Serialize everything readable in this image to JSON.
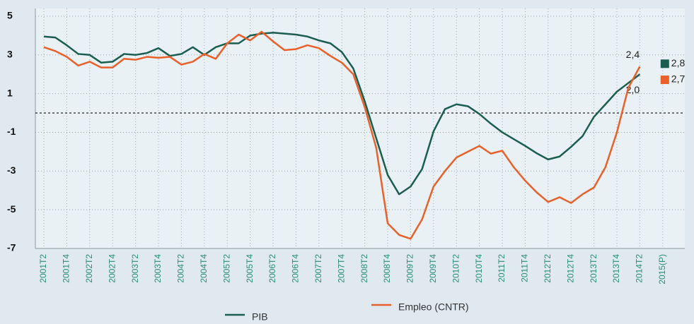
{
  "chart_data": {
    "type": "line",
    "categories": [
      "2001T2",
      null,
      "2001T4",
      null,
      "2002T2",
      null,
      "2002T4",
      null,
      "2003T2",
      null,
      "2003T4",
      null,
      "2004T2",
      null,
      "2004T4",
      null,
      "2005T2",
      null,
      "2005T4",
      null,
      "2006T2",
      null,
      "2006T4",
      null,
      "2007T2",
      null,
      "2007T4",
      null,
      "2008T2",
      null,
      "2008T4",
      null,
      "2009T2",
      null,
      "2009T4",
      null,
      "2010T2",
      null,
      "2010T4",
      null,
      "2011T2",
      null,
      "2011T4",
      null,
      "2012T2",
      null,
      "2012T4",
      null,
      "2013T2",
      null,
      "2013T4",
      null,
      "2014T2",
      null,
      "2015(P)"
    ],
    "series": [
      {
        "name": "PIB",
        "color": "#1b5e50",
        "values": [
          3.95,
          3.9,
          3.5,
          3.05,
          3.0,
          2.6,
          2.65,
          3.05,
          3.0,
          3.1,
          3.35,
          2.95,
          3.05,
          3.4,
          3.0,
          3.4,
          3.6,
          3.6,
          4.0,
          4.1,
          4.15,
          4.1,
          4.05,
          3.95,
          3.75,
          3.6,
          3.15,
          2.3,
          0.6,
          -1.3,
          -3.2,
          -4.2,
          -3.8,
          -2.9,
          -0.95,
          0.2,
          0.45,
          0.35,
          -0.05,
          -0.55,
          -1.0,
          -1.35,
          -1.7,
          -2.08,
          -2.4,
          -2.25,
          -1.75,
          -1.2,
          -0.2,
          0.45,
          1.1,
          1.55,
          2.0,
          null,
          2.8
        ],
        "value_labels": [
          null,
          null,
          null,
          null,
          null,
          null,
          null,
          null,
          null,
          null,
          null,
          null,
          null,
          null,
          null,
          null,
          null,
          null,
          null,
          null,
          null,
          null,
          null,
          null,
          null,
          null,
          null,
          null,
          null,
          null,
          null,
          null,
          null,
          null,
          null,
          null,
          null,
          null,
          null,
          null,
          null,
          null,
          null,
          null,
          null,
          null,
          null,
          null,
          null,
          null,
          null,
          null,
          "2,0",
          null,
          "2,8"
        ]
      },
      {
        "name": "Empleo (CNTR)",
        "color": "#e8602a",
        "values": [
          3.4,
          3.2,
          2.9,
          2.45,
          2.65,
          2.35,
          2.35,
          2.8,
          2.75,
          2.9,
          2.85,
          2.9,
          2.5,
          2.65,
          3.05,
          2.8,
          3.6,
          4.05,
          3.75,
          4.2,
          3.7,
          3.25,
          3.3,
          3.5,
          3.35,
          2.95,
          2.6,
          2.0,
          0.3,
          -1.8,
          -5.7,
          -6.3,
          -6.5,
          -5.5,
          -3.8,
          -3.0,
          -2.3,
          -2.0,
          -1.7,
          -2.1,
          -1.95,
          -2.8,
          -3.5,
          -4.1,
          -4.6,
          -4.35,
          -4.65,
          -4.2,
          -3.85,
          -2.8,
          -1.0,
          1.3,
          2.4,
          null,
          2.7
        ],
        "value_labels": [
          null,
          null,
          null,
          null,
          null,
          null,
          null,
          null,
          null,
          null,
          null,
          null,
          null,
          null,
          null,
          null,
          null,
          null,
          null,
          null,
          null,
          null,
          null,
          null,
          null,
          null,
          null,
          null,
          null,
          null,
          null,
          null,
          null,
          null,
          null,
          null,
          null,
          null,
          null,
          null,
          null,
          null,
          null,
          null,
          null,
          null,
          null,
          null,
          null,
          null,
          null,
          null,
          "2,4",
          null,
          "2,7"
        ]
      }
    ],
    "ylim": [
      -7,
      5.4
    ],
    "yticks": [
      5,
      3,
      1,
      -1,
      -3,
      -5,
      -7
    ],
    "grid": true
  }
}
